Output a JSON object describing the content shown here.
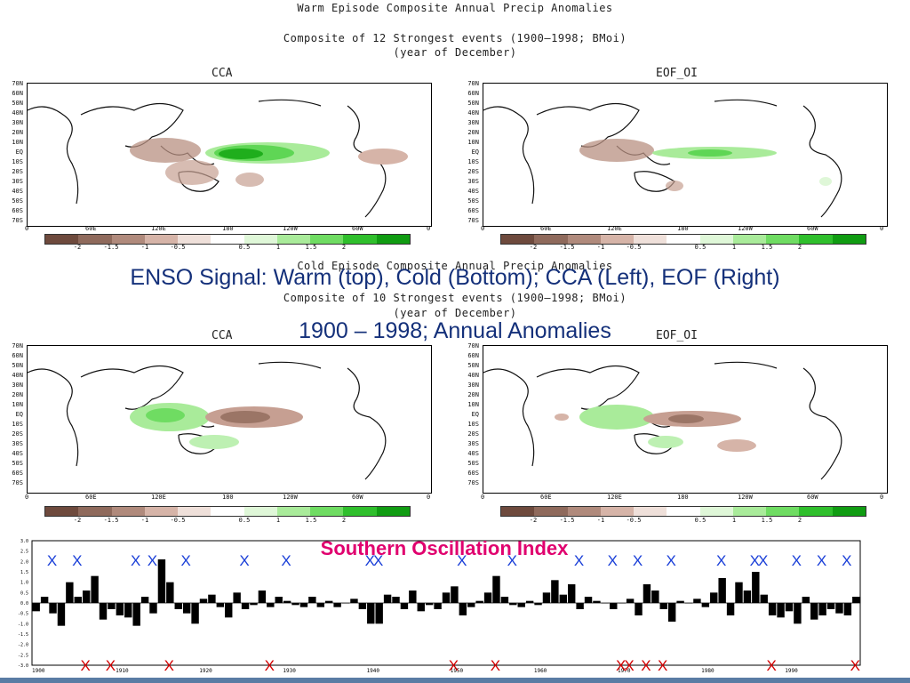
{
  "warm": {
    "title": "Warm Episode Composite Annual Precip Anomalies",
    "subtitle": "Composite of 12 Strongest events (1900–1998; BMoi)",
    "subtitle2": "(year of December)"
  },
  "cold": {
    "title": "Cold Episode Composite Annual Precip Anomalies",
    "subtitle": "Composite of 10 Strongest events (1900–1998; BMoi)",
    "subtitle2": "(year of December)"
  },
  "map_labels": {
    "left": "CCA",
    "right": "EOF_OI"
  },
  "lat_ticks": [
    "70N",
    "60N",
    "50N",
    "40N",
    "30N",
    "20N",
    "10N",
    "EQ",
    "10S",
    "20S",
    "30S",
    "40S",
    "50S",
    "60S",
    "70S"
  ],
  "lon_ticks": [
    "0",
    "60E",
    "120E",
    "180",
    "120W",
    "60W",
    "0"
  ],
  "colorbar": {
    "ticks": [
      "-2",
      "-1.5",
      "-1",
      "-0.5",
      "0.5",
      "1",
      "1.5",
      "2"
    ],
    "colors": [
      "#6e4a3d",
      "#8f6a5c",
      "#b08a7c",
      "#d6b4a8",
      "#efe0da",
      "#ffffff",
      "#dff7d8",
      "#a9eb9a",
      "#6fdc62",
      "#2fbf2c",
      "#109c12"
    ]
  },
  "overlay": {
    "line1": "ENSO Signal: Warm (top), Cold (Bottom); CCA (Left), EOF (Right)",
    "line2": "1900 – 1998; Annual Anomalies"
  },
  "soi_title": "Southern Oscillation Index",
  "x_label": "X",
  "colors": {
    "overlay_text": "#14307a",
    "soi_title": "#e0006e",
    "x_top": "#1a3fd8",
    "x_bottom": "#d40000",
    "bars": "#000000"
  },
  "chart_data": {
    "type": "bar",
    "title": "Southern Oscillation Index",
    "x_start": 1900,
    "x_end": 1998,
    "ylim": [
      -3,
      3
    ],
    "y_ticks": [
      "3.0",
      "2.5",
      "2.0",
      "1.5",
      "1.0",
      "0.5",
      "0.0",
      "-0.5",
      "-1.0",
      "-1.5",
      "-2.0",
      "-2.5",
      "-3.0"
    ],
    "x_ticks": [
      "1900",
      "1910",
      "1920",
      "1930",
      "1940",
      "1950",
      "1960",
      "1970",
      "1980",
      "1990"
    ],
    "values": [
      -0.4,
      0.3,
      -0.5,
      -1.1,
      1.0,
      0.3,
      0.6,
      1.3,
      -0.8,
      -0.3,
      -0.6,
      -0.7,
      -1.1,
      0.3,
      -0.5,
      2.1,
      1.0,
      -0.3,
      -0.5,
      -1.0,
      0.2,
      0.4,
      -0.2,
      -0.7,
      0.5,
      -0.3,
      -0.1,
      0.6,
      -0.2,
      0.3,
      0.1,
      -0.1,
      -0.2,
      0.3,
      -0.2,
      0.1,
      -0.2,
      0.0,
      0.2,
      -0.3,
      -1.0,
      -1.0,
      0.4,
      0.3,
      -0.3,
      0.6,
      -0.4,
      -0.1,
      -0.3,
      0.5,
      0.8,
      -0.6,
      -0.2,
      0.1,
      0.5,
      1.3,
      0.3,
      -0.1,
      -0.2,
      0.1,
      -0.1,
      0.5,
      1.1,
      0.4,
      0.9,
      -0.3,
      0.3,
      0.1,
      0.0,
      -0.3,
      0.0,
      0.2,
      -0.6,
      0.9,
      0.6,
      -0.3,
      -0.9,
      0.1,
      0.0,
      0.2,
      -0.2,
      0.5,
      1.2,
      -0.6,
      1.0,
      0.6,
      1.5,
      0.4,
      -0.6,
      -0.7,
      -0.4,
      -1.0,
      0.3,
      -0.8,
      -0.6,
      -0.3,
      -0.5,
      -0.6,
      0.3
    ]
  },
  "warm_event_marks": [
    1902,
    1905,
    1912,
    1914,
    1918,
    1925,
    1930,
    1940,
    1941,
    1951,
    1957,
    1965,
    1969,
    1972,
    1976,
    1982,
    1986,
    1987,
    1991,
    1994,
    1997
  ],
  "cold_event_marks": [
    1906,
    1909,
    1916,
    1928,
    1950,
    1955,
    1970,
    1971,
    1973,
    1975,
    1988,
    1998
  ]
}
